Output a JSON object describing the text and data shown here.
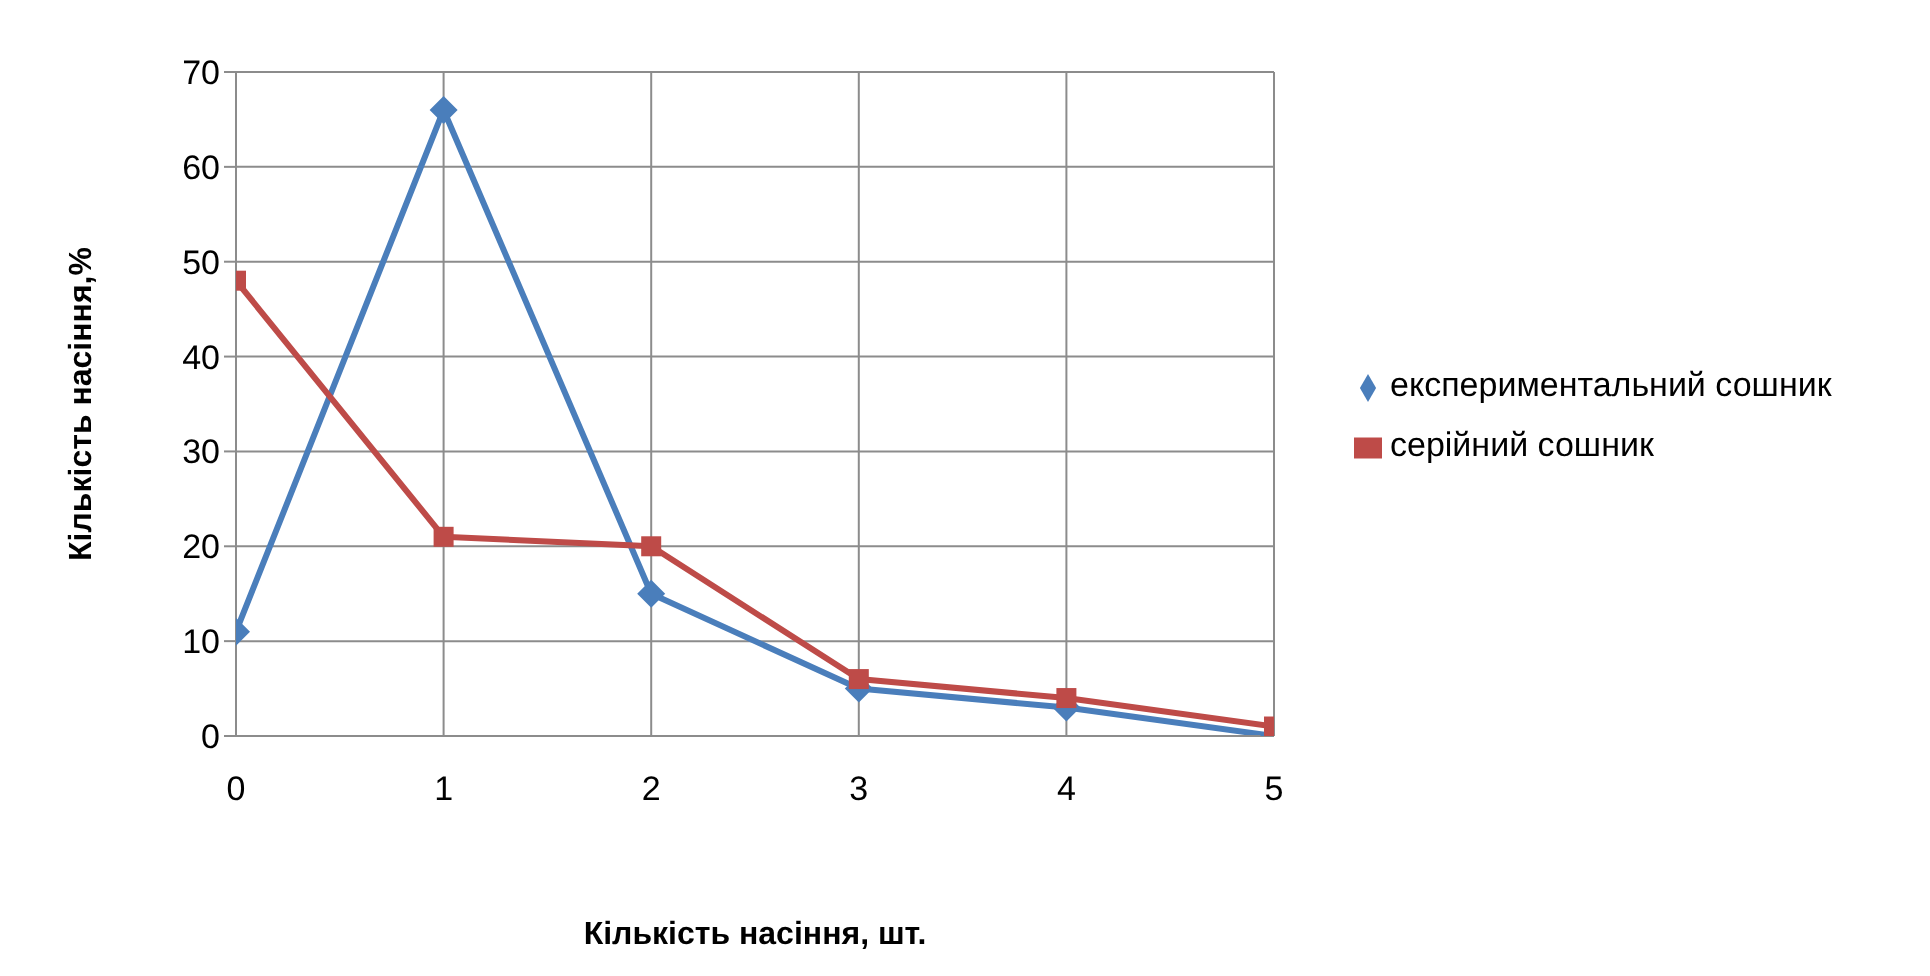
{
  "chart_data": {
    "type": "line",
    "xlabel": "Кількість насіння, шт.",
    "ylabel": "Кількість насіння,%",
    "x": [
      0,
      1,
      2,
      3,
      4,
      5
    ],
    "series": [
      {
        "name": "експериментальний сошник",
        "color": "#4a7ebb",
        "marker": "diamond",
        "values": [
          11,
          66,
          15,
          5,
          3,
          0
        ]
      },
      {
        "name": "серійний сошник",
        "color": "#be4b48",
        "marker": "square",
        "values": [
          48,
          21,
          20,
          6,
          4,
          1
        ]
      }
    ],
    "xlim": [
      0,
      5
    ],
    "xticks": [
      0,
      1,
      2,
      3,
      4,
      5
    ],
    "ylim": [
      0,
      70
    ],
    "yticks": [
      0,
      10,
      20,
      30,
      40,
      50,
      60,
      70
    ],
    "grid": true,
    "legend": "right"
  }
}
